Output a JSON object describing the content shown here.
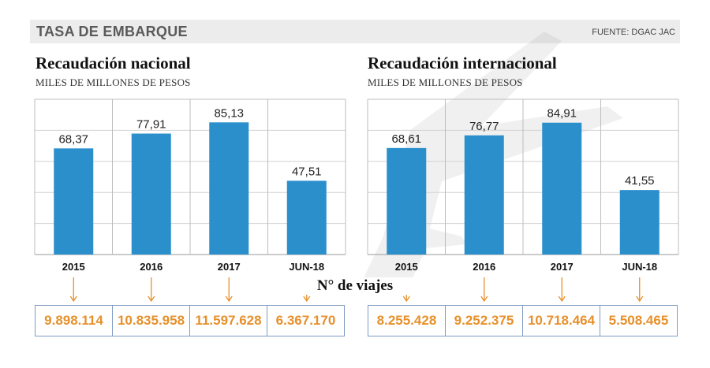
{
  "header": {
    "title": "TASA DE EMBARQUE",
    "source": "FUENTE: DGAC JAC"
  },
  "trips_label": "N° de viajes",
  "colors": {
    "bar": "#2b8fcc",
    "trips_text": "#e7902a",
    "arrow": "#e7902a",
    "box_border": "#7f9bc4"
  },
  "chart_data": [
    {
      "type": "bar",
      "title": "Recaudación nacional",
      "subtitle": "MILES DE MILLONES DE PESOS",
      "categories": [
        "2015",
        "2016",
        "2017",
        "JUN-18"
      ],
      "values": [
        68.37,
        77.91,
        85.13,
        47.51
      ],
      "value_labels": [
        "68,37",
        "77,91",
        "85,13",
        "47,51"
      ],
      "ylim": [
        0,
        100
      ],
      "grid": true,
      "trips": [
        "9.898.114",
        "10.835.958",
        "11.597.628",
        "6.367.170"
      ]
    },
    {
      "type": "bar",
      "title": "Recaudación internacional",
      "subtitle": "MILES DE MILLONES DE PESOS",
      "categories": [
        "2015",
        "2016",
        "2017",
        "JUN-18"
      ],
      "values": [
        68.61,
        76.77,
        84.91,
        41.55
      ],
      "value_labels": [
        "68,61",
        "76,77",
        "84,91",
        "41,55"
      ],
      "ylim": [
        0,
        100
      ],
      "grid": true,
      "trips": [
        "8.255.428",
        "9.252.375",
        "10.718.464",
        "5.508.465"
      ]
    }
  ]
}
